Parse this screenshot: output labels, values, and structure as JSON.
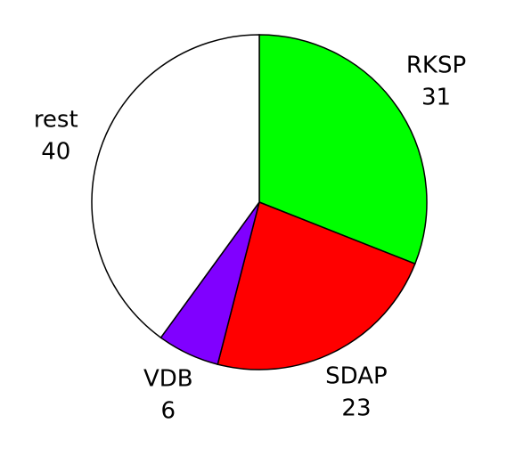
{
  "chart_data": {
    "type": "pie",
    "categories": [
      "RKSP",
      "SDAP",
      "VDB",
      "rest"
    ],
    "values": [
      31,
      23,
      6,
      40
    ],
    "colors": [
      "#00ff00",
      "#ff0000",
      "#8000ff",
      "#ffffff"
    ]
  }
}
